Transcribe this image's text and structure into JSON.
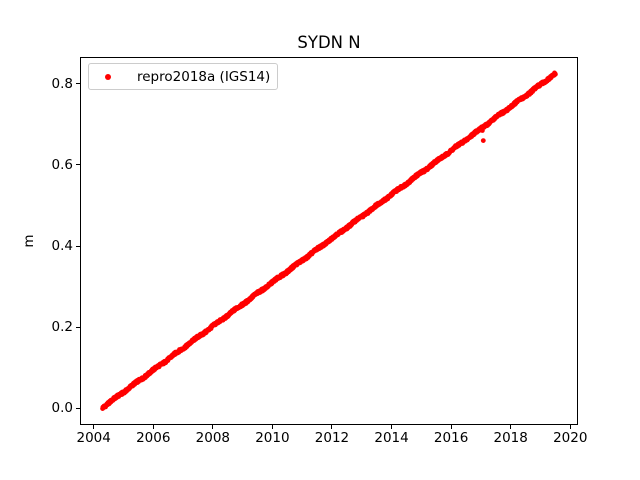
{
  "chart_data": {
    "type": "scatter",
    "title": "SYDN N",
    "xlabel": "",
    "ylabel": "m",
    "xlim": [
      2003.54,
      2020.26
    ],
    "ylim": [
      -0.0413,
      0.8663
    ],
    "xticks": [
      2004,
      2006,
      2008,
      2010,
      2012,
      2014,
      2016,
      2018,
      2020
    ],
    "yticks": [
      0.0,
      0.2,
      0.4,
      0.6,
      0.8
    ],
    "grid": false,
    "legend": {
      "label": "repro2018a (IGS14)",
      "position": "upper left",
      "marker": "dot",
      "marker_color": "#ff0000",
      "border_color": "#cccccc"
    },
    "series": [
      {
        "name": "repro2018a (IGS14)",
        "color": "#ff0000",
        "marker": "dot",
        "marker_radius_px": 2.4,
        "trend": {
          "x_start": 2004.3,
          "y_start": 0.002,
          "x_end": 2019.5,
          "y_end": 0.825,
          "slope_m_per_yr": 0.0541
        },
        "scatter_band_m": 0.006,
        "outliers": [
          [
            2017.05,
            0.685
          ],
          [
            2017.08,
            0.66
          ]
        ]
      }
    ]
  }
}
